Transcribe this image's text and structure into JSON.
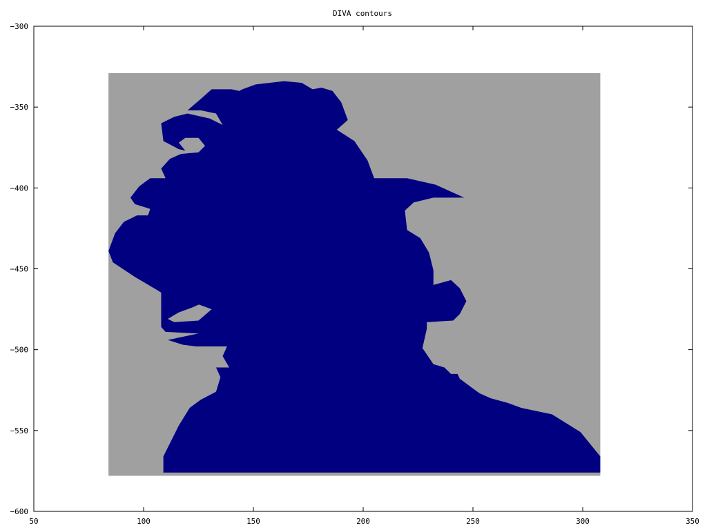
{
  "chart_data": {
    "type": "area",
    "title": "DIVA contours",
    "xlabel": "",
    "ylabel": "",
    "xlim": [
      50,
      350
    ],
    "ylim": [
      -600,
      -300
    ],
    "x_ticks": [
      50,
      100,
      150,
      200,
      250,
      300,
      350
    ],
    "y_ticks": [
      -300,
      -350,
      -400,
      -450,
      -500,
      -550,
      -600
    ],
    "x_tick_labels": [
      "50",
      "100",
      "150",
      "200",
      "250",
      "300",
      "350"
    ],
    "y_tick_labels": [
      "−300",
      "−350",
      "−400",
      "−450",
      "−500",
      "−550",
      "−600"
    ],
    "grid": false,
    "domain_extent": {
      "x": [
        84,
        308
      ],
      "y": [
        -578,
        -329
      ]
    },
    "background_color": "#a0a0a0",
    "fill_color": "#000080",
    "series": [
      {
        "values": [
          [
            109,
            -576
          ],
          [
            109,
            -566
          ],
          [
            116,
            -547
          ],
          [
            121,
            -536
          ],
          [
            126,
            -531
          ],
          [
            133,
            -526
          ],
          [
            135,
            -517
          ],
          [
            133,
            -511
          ],
          [
            139,
            -511
          ],
          [
            136,
            -504
          ],
          [
            138,
            -498
          ],
          [
            124,
            -498
          ],
          [
            118,
            -497
          ],
          [
            111,
            -494
          ],
          [
            125,
            -490
          ],
          [
            110,
            -489
          ],
          [
            108,
            -486
          ],
          [
            108,
            -478
          ],
          [
            108,
            -464
          ],
          [
            115,
            -469
          ],
          [
            121,
            -469
          ],
          [
            127,
            -471
          ],
          [
            122,
            -474
          ],
          [
            116,
            -477
          ],
          [
            111,
            -481
          ],
          [
            114,
            -483
          ],
          [
            125,
            -482
          ],
          [
            131,
            -475
          ],
          [
            119,
            -469
          ],
          [
            113,
            -469
          ],
          [
            106,
            -463
          ],
          [
            96,
            -455
          ],
          [
            86,
            -446
          ],
          [
            84,
            -439
          ],
          [
            87,
            -428
          ],
          [
            91,
            -421
          ],
          [
            97,
            -417
          ],
          [
            102,
            -417
          ],
          [
            103,
            -413
          ],
          [
            96,
            -410
          ],
          [
            94,
            -406
          ],
          [
            98,
            -399
          ],
          [
            103,
            -394
          ],
          [
            110,
            -394
          ],
          [
            108,
            -388
          ],
          [
            112,
            -382
          ],
          [
            117,
            -379
          ],
          [
            125,
            -378
          ],
          [
            128,
            -374
          ],
          [
            125,
            -369
          ],
          [
            119,
            -369
          ],
          [
            116,
            -372
          ],
          [
            119,
            -377
          ],
          [
            116,
            -376
          ],
          [
            109,
            -371
          ],
          [
            108,
            -360
          ],
          [
            114,
            -356
          ],
          [
            120,
            -354
          ],
          [
            130,
            -357
          ],
          [
            136,
            -361
          ],
          [
            133,
            -354
          ],
          [
            126,
            -352
          ],
          [
            120,
            -352
          ],
          [
            126,
            -345
          ],
          [
            131,
            -339
          ],
          [
            140,
            -339
          ],
          [
            147,
            -341
          ],
          [
            151,
            -345
          ],
          [
            146,
            -342
          ],
          [
            141,
            -342
          ],
          [
            145,
            -339
          ],
          [
            151,
            -336
          ],
          [
            164,
            -334
          ],
          [
            172,
            -335
          ],
          [
            177,
            -339
          ],
          [
            181,
            -338
          ],
          [
            186,
            -340
          ],
          [
            190,
            -347
          ],
          [
            193,
            -358
          ],
          [
            188,
            -364
          ],
          [
            196,
            -371
          ],
          [
            202,
            -383
          ],
          [
            205,
            -394
          ],
          [
            209,
            -394
          ],
          [
            220,
            -394
          ],
          [
            233,
            -398
          ],
          [
            246,
            -406
          ],
          [
            232,
            -406
          ],
          [
            223,
            -409
          ],
          [
            219,
            -414
          ],
          [
            220,
            -426
          ],
          [
            226,
            -431
          ],
          [
            230,
            -440
          ],
          [
            232,
            -451
          ],
          [
            232,
            -460
          ],
          [
            240,
            -457
          ],
          [
            244,
            -462
          ],
          [
            247,
            -470
          ],
          [
            244,
            -478
          ],
          [
            241,
            -482
          ],
          [
            229,
            -483
          ],
          [
            229,
            -487
          ],
          [
            227,
            -499
          ],
          [
            232,
            -509
          ],
          [
            237,
            -511
          ],
          [
            240,
            -515
          ],
          [
            243,
            -515
          ],
          [
            244,
            -518
          ],
          [
            246,
            -520
          ],
          [
            249,
            -523
          ],
          [
            253,
            -527
          ],
          [
            258,
            -530
          ],
          [
            266,
            -533
          ],
          [
            272,
            -536
          ],
          [
            286,
            -540
          ],
          [
            299,
            -551
          ],
          [
            308,
            -566
          ],
          [
            308,
            -576
          ]
        ]
      }
    ]
  }
}
